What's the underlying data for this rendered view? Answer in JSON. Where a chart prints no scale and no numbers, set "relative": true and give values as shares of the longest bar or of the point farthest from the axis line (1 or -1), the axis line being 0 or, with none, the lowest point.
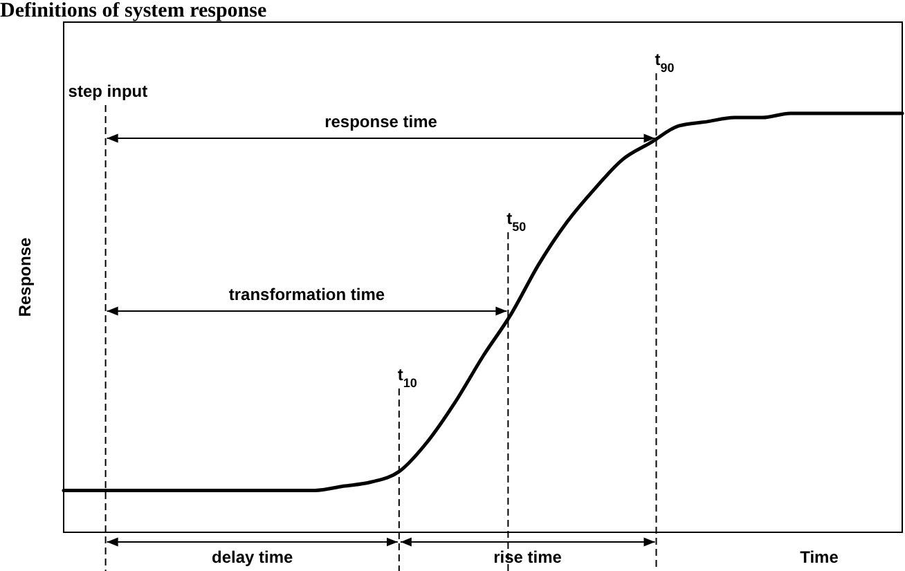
{
  "chart_data": {
    "type": "line",
    "title": "Definitions of system response",
    "xlabel": "Time",
    "ylabel": "Response",
    "relative": true,
    "categories": [
      null,
      null,
      null,
      null,
      null,
      null,
      null,
      null,
      null,
      null,
      null,
      null,
      null,
      null,
      null,
      null,
      null,
      null,
      null,
      null,
      null,
      null,
      null,
      null,
      null,
      null,
      null,
      null,
      null,
      null,
      null
    ],
    "series": [
      {
        "color": "#000000",
        "values": [
          0.1,
          0.1,
          0.1,
          0.1,
          0.1,
          0.1,
          0.1,
          0.1,
          0.1,
          0.1,
          0.11,
          0.12,
          0.145,
          0.215,
          0.31,
          0.42,
          0.52,
          0.64,
          0.74,
          0.82,
          0.89,
          0.93,
          0.97,
          0.98,
          0.99,
          0.99,
          1,
          1,
          1,
          1,
          1
        ]
      }
    ],
    "ref_lines": [
      {
        "axis": "x",
        "label": "step input",
        "line_style": "dashed"
      },
      {
        "axis": "x",
        "label": "t$_{10}$",
        "line_style": "dashed"
      },
      {
        "axis": "x",
        "label": "t$_{50}$",
        "line_style": "dashed"
      },
      {
        "axis": "x",
        "label": "t$_{90}$",
        "line_style": "dashed"
      }
    ],
    "annotations": [
      "response time",
      "transformation time",
      "delay time",
      "rise time"
    ],
    "line_style": "solid",
    "marker": "none"
  }
}
